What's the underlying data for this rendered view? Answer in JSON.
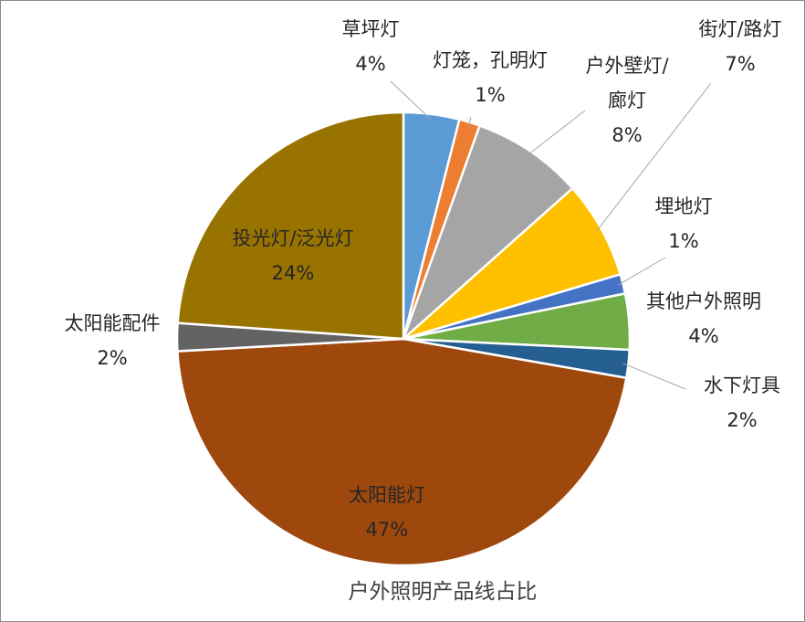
{
  "chart_data": {
    "type": "pie",
    "title": "户外照明产品线占比",
    "slices": [
      {
        "name": "草坪灯",
        "value": 4,
        "label": "4%",
        "color": "#5b9bd5"
      },
      {
        "name": "灯笼，孔明灯",
        "value": 1.5,
        "label": "1%",
        "color": "#ed7d31"
      },
      {
        "name": "户外壁灯/廊灯",
        "value": 8,
        "label": "8%",
        "color": "#a5a5a5"
      },
      {
        "name": "街灯/路灯",
        "value": 7,
        "label": "7%",
        "color": "#ffc000"
      },
      {
        "name": "埋地灯",
        "value": 1.4,
        "label": "1%",
        "color": "#4472c4"
      },
      {
        "name": "其他户外照明",
        "value": 4,
        "label": "4%",
        "color": "#70ad47"
      },
      {
        "name": "水下灯具",
        "value": 2,
        "label": "2%",
        "color": "#255e91"
      },
      {
        "name": "太阳能灯",
        "value": 46.6,
        "label": "47%",
        "color": "#9e480e"
      },
      {
        "name": "太阳能配件",
        "value": 2,
        "label": "2%",
        "color": "#636363"
      },
      {
        "name": "投光灯/泛光灯",
        "value": 24,
        "label": "24%",
        "color": "#997300"
      }
    ]
  }
}
